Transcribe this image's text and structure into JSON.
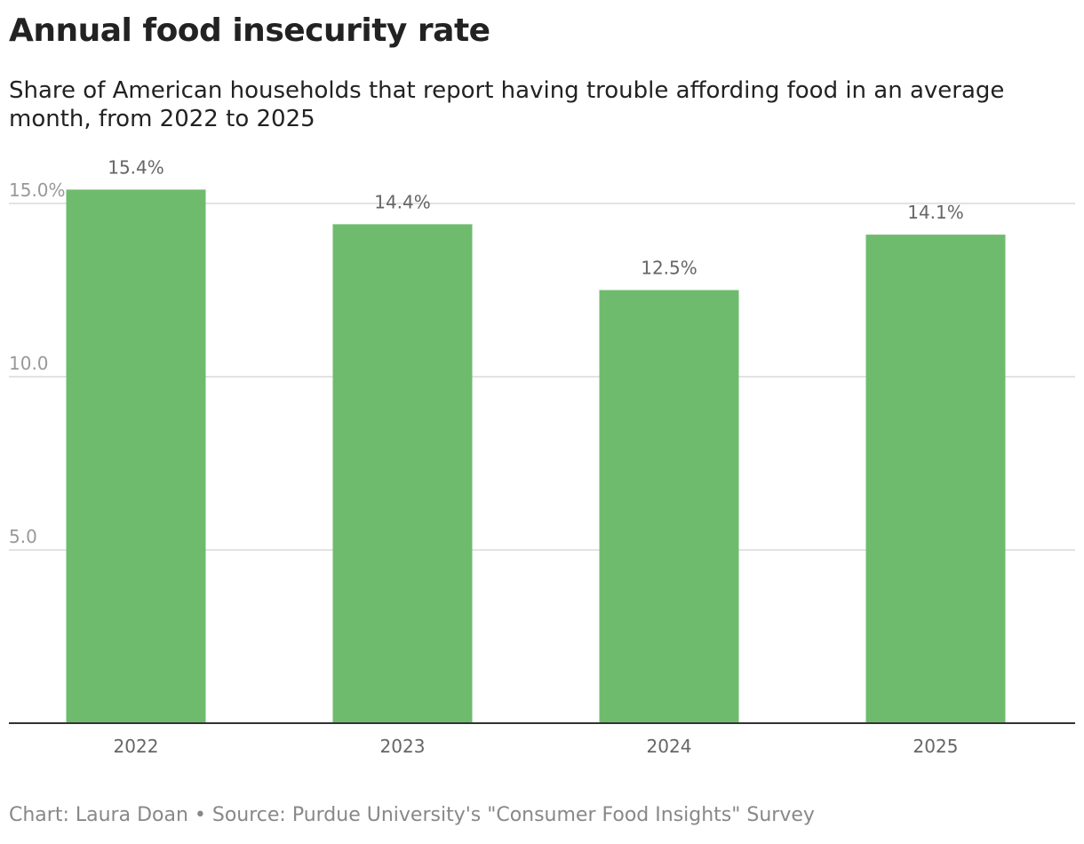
{
  "chart_data": {
    "type": "bar",
    "title": "Annual food insecurity rate",
    "subtitle": "Share of American households that report having trouble affording food in an average month, from 2022 to 2025",
    "categories": [
      "2022",
      "2023",
      "2024",
      "2025"
    ],
    "values": [
      15.4,
      14.4,
      12.5,
      14.1
    ],
    "data_labels": [
      "15.4%",
      "14.4%",
      "12.5%",
      "14.1%"
    ],
    "yticks": [
      5,
      10,
      15
    ],
    "ytick_labels": [
      "5.0",
      "10.0",
      "15.0%"
    ],
    "ylim": [
      0,
      15.4
    ],
    "xlabel": "",
    "ylabel": "",
    "grid": true,
    "bar_color": "#6fbb6e",
    "source": "Chart: Laura Doan • Source: Purdue University's \"Consumer Food Insights\" Survey"
  }
}
